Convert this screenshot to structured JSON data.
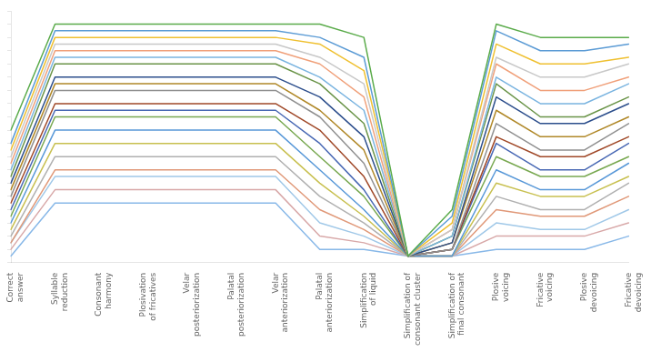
{
  "chart_data": {
    "type": "line",
    "categories": [
      "Correct\nanswer",
      "Syllable\nreduction",
      "Consonant\nharmony",
      "Plosivation\nof fricatives",
      "Velar\nposteriorization",
      "Palatal\nposteriorization",
      "Velar\nanteriorization",
      "Palatal\nanteriorization",
      "Simplification\nof liquid",
      "Simplification of\nconsonant cluster",
      "Simplification of\nfinal consonant",
      "Plosive\nvoicing",
      "Fricative\nvoicing",
      "Plosive\ndevoicing",
      "Fricative\ndevoicing"
    ],
    "series": [
      {
        "color": "#5aab4a",
        "values": [
          20,
          36,
          36,
          36,
          36,
          36,
          36,
          36,
          34,
          1,
          8,
          36,
          34,
          34,
          34
        ]
      },
      {
        "color": "#5b9bd5",
        "values": [
          18,
          35,
          35,
          35,
          35,
          35,
          35,
          34,
          31,
          1,
          7,
          35,
          32,
          32,
          33
        ]
      },
      {
        "color": "#efc030",
        "values": [
          17,
          34,
          34,
          34,
          34,
          34,
          34,
          33,
          29,
          1,
          6,
          33,
          30,
          30,
          31
        ]
      },
      {
        "color": "#c8c8c8",
        "values": [
          16,
          33,
          33,
          33,
          33,
          33,
          33,
          31,
          27,
          1,
          5,
          31,
          28,
          28,
          30
        ]
      },
      {
        "color": "#f0a07a",
        "values": [
          15,
          32,
          32,
          32,
          32,
          32,
          32,
          30,
          25,
          1,
          5,
          30,
          26,
          26,
          28
        ]
      },
      {
        "color": "#7ab4e0",
        "values": [
          14,
          31,
          31,
          31,
          31,
          31,
          31,
          28,
          23,
          1,
          4,
          28,
          24,
          24,
          27
        ]
      },
      {
        "color": "#6a9448",
        "values": [
          13,
          30,
          30,
          30,
          30,
          30,
          30,
          27,
          21,
          1,
          4,
          27,
          22,
          22,
          25
        ]
      },
      {
        "color": "#2c4e8c",
        "values": [
          12,
          28,
          28,
          28,
          28,
          28,
          28,
          25,
          19,
          1,
          3,
          25,
          21,
          21,
          24
        ]
      },
      {
        "color": "#b08828",
        "values": [
          11,
          27,
          27,
          27,
          27,
          27,
          27,
          23,
          17,
          1,
          3,
          23,
          19,
          19,
          22
        ]
      },
      {
        "color": "#909090",
        "values": [
          10,
          26,
          26,
          26,
          26,
          26,
          26,
          22,
          15,
          1,
          2,
          21,
          17,
          17,
          21
        ]
      },
      {
        "color": "#a04828",
        "values": [
          9,
          24,
          24,
          24,
          24,
          24,
          24,
          20,
          13,
          1,
          2,
          19,
          16,
          16,
          19
        ]
      },
      {
        "color": "#4868b4",
        "values": [
          8,
          23,
          23,
          23,
          23,
          23,
          23,
          18,
          11,
          1,
          2,
          18,
          14,
          14,
          18
        ]
      },
      {
        "color": "#78a850",
        "values": [
          7,
          22,
          22,
          22,
          22,
          22,
          22,
          16,
          10,
          1,
          2,
          16,
          13,
          13,
          16
        ]
      },
      {
        "color": "#5898d8",
        "values": [
          6,
          20,
          20,
          20,
          20,
          20,
          20,
          14,
          8,
          1,
          1,
          14,
          11,
          11,
          15
        ]
      },
      {
        "color": "#c8c050",
        "values": [
          5,
          18,
          18,
          18,
          18,
          18,
          18,
          12,
          7,
          1,
          1,
          12,
          10,
          10,
          13
        ]
      },
      {
        "color": "#b0b0b0",
        "values": [
          4,
          16,
          16,
          16,
          16,
          16,
          16,
          10,
          6,
          1,
          1,
          10,
          8,
          8,
          12
        ]
      },
      {
        "color": "#e09878",
        "values": [
          3,
          14,
          14,
          14,
          14,
          14,
          14,
          8,
          5,
          1,
          1,
          8,
          7,
          7,
          10
        ]
      },
      {
        "color": "#a0c8e8",
        "values": [
          3,
          13,
          13,
          13,
          13,
          13,
          13,
          6,
          4,
          1,
          1,
          6,
          5,
          5,
          8
        ]
      },
      {
        "color": "#d8a8a8",
        "values": [
          2,
          11,
          11,
          11,
          11,
          11,
          11,
          4,
          3,
          1,
          1,
          4,
          4,
          4,
          6
        ]
      },
      {
        "color": "#88b8e8",
        "values": [
          1,
          9,
          9,
          9,
          9,
          9,
          9,
          2,
          2,
          1,
          1,
          2,
          2,
          2,
          4
        ]
      }
    ],
    "ylim": [
      0,
      38
    ],
    "yticks": [
      0,
      2,
      4,
      6,
      8,
      10,
      12,
      14,
      16,
      18,
      20,
      22,
      24,
      26,
      28,
      30,
      32,
      34,
      36,
      38
    ],
    "grid": false,
    "tick_labels": "x"
  }
}
